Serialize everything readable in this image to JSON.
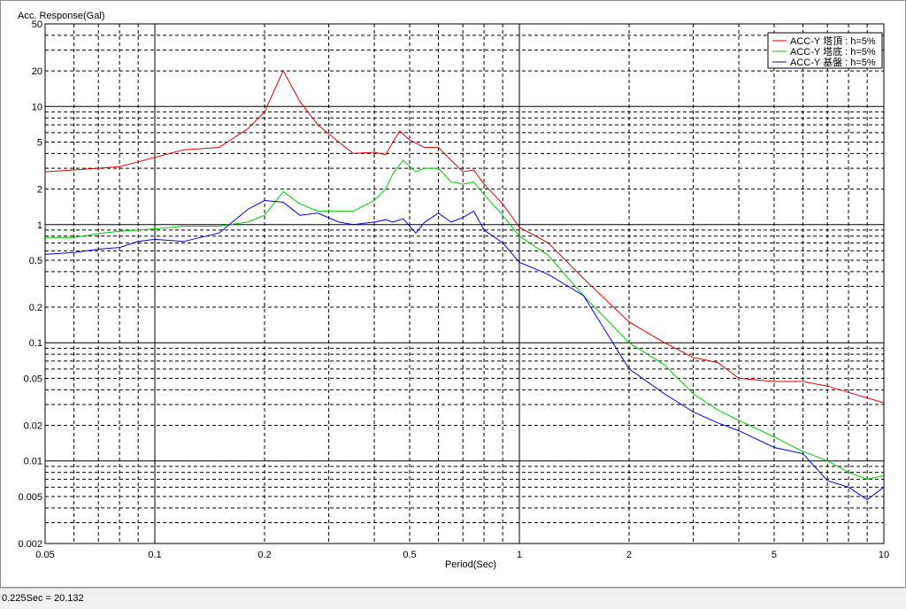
{
  "status": {
    "readout": "0.225Sec = 20.132"
  },
  "chart_data": {
    "type": "line",
    "title": "",
    "ylabel": "Acc. Response(Gal)",
    "xlabel": "Period(Sec)",
    "xscale": "log",
    "yscale": "log",
    "xlim": [
      0.05,
      10
    ],
    "ylim": [
      0.002,
      50
    ],
    "grid": true,
    "legend_position": "top-right",
    "x_ticks": [
      0.05,
      0.1,
      0.2,
      0.5,
      1,
      2,
      5,
      10
    ],
    "x_tick_labels": [
      "0.05",
      "0.1",
      "0.2",
      "0.5",
      "1",
      "2",
      "5",
      "10"
    ],
    "y_ticks": [
      0.002,
      0.005,
      0.01,
      0.02,
      0.05,
      0.1,
      0.2,
      0.5,
      1,
      2,
      5,
      10,
      20,
      50
    ],
    "y_tick_labels": [
      "0.002",
      "0.005",
      "0.01",
      "0.02",
      "0.05",
      "0.1",
      "0.2",
      "0.5",
      "1",
      "2",
      "5",
      "10",
      "20",
      "50"
    ],
    "series": [
      {
        "name": "ACC-Y 塔頂 : h=5%",
        "color": "#e00000",
        "points": [
          [
            0.05,
            2.8
          ],
          [
            0.06,
            2.9
          ],
          [
            0.07,
            3.0
          ],
          [
            0.08,
            3.1
          ],
          [
            0.09,
            3.4
          ],
          [
            0.1,
            3.7
          ],
          [
            0.12,
            4.3
          ],
          [
            0.15,
            4.5
          ],
          [
            0.18,
            6.5
          ],
          [
            0.2,
            9
          ],
          [
            0.225,
            20.1
          ],
          [
            0.25,
            11
          ],
          [
            0.28,
            7
          ],
          [
            0.32,
            5
          ],
          [
            0.35,
            4
          ],
          [
            0.4,
            4.1
          ],
          [
            0.43,
            3.9
          ],
          [
            0.45,
            5
          ],
          [
            0.47,
            6.2
          ],
          [
            0.5,
            5.2
          ],
          [
            0.55,
            4.5
          ],
          [
            0.6,
            4.5
          ],
          [
            0.65,
            3.5
          ],
          [
            0.7,
            2.8
          ],
          [
            0.75,
            2.9
          ],
          [
            0.8,
            2.2
          ],
          [
            0.9,
            1.5
          ],
          [
            1.0,
            0.95
          ],
          [
            1.2,
            0.7
          ],
          [
            1.5,
            0.35
          ],
          [
            2.0,
            0.15
          ],
          [
            2.5,
            0.1
          ],
          [
            3.0,
            0.075
          ],
          [
            3.5,
            0.068
          ],
          [
            4.0,
            0.05
          ],
          [
            5.0,
            0.047
          ],
          [
            6.0,
            0.047
          ],
          [
            7.0,
            0.043
          ],
          [
            8.0,
            0.038
          ],
          [
            10.0,
            0.031
          ]
        ]
      },
      {
        "name": "ACC-Y 塔底 : h=5%",
        "color": "#00c800",
        "points": [
          [
            0.05,
            0.78
          ],
          [
            0.06,
            0.78
          ],
          [
            0.07,
            0.84
          ],
          [
            0.08,
            0.88
          ],
          [
            0.09,
            0.9
          ],
          [
            0.1,
            0.92
          ],
          [
            0.12,
            0.97
          ],
          [
            0.15,
            0.97
          ],
          [
            0.18,
            1.05
          ],
          [
            0.2,
            1.2
          ],
          [
            0.225,
            1.9
          ],
          [
            0.25,
            1.5
          ],
          [
            0.28,
            1.3
          ],
          [
            0.32,
            1.3
          ],
          [
            0.35,
            1.3
          ],
          [
            0.4,
            1.6
          ],
          [
            0.43,
            2.0
          ],
          [
            0.45,
            2.7
          ],
          [
            0.48,
            3.5
          ],
          [
            0.52,
            2.8
          ],
          [
            0.55,
            3.0
          ],
          [
            0.6,
            3.0
          ],
          [
            0.65,
            2.3
          ],
          [
            0.7,
            2.2
          ],
          [
            0.75,
            2.3
          ],
          [
            0.8,
            1.8
          ],
          [
            0.9,
            1.2
          ],
          [
            1.0,
            0.8
          ],
          [
            1.2,
            0.55
          ],
          [
            1.5,
            0.25
          ],
          [
            2.0,
            0.1
          ],
          [
            2.5,
            0.065
          ],
          [
            3.0,
            0.037
          ],
          [
            3.5,
            0.027
          ],
          [
            4.0,
            0.022
          ],
          [
            5.0,
            0.016
          ],
          [
            6.0,
            0.012
          ],
          [
            7.0,
            0.01
          ],
          [
            8.0,
            0.008
          ],
          [
            9.0,
            0.007
          ],
          [
            10.0,
            0.0075
          ]
        ]
      },
      {
        "name": "ACC-Y 基盤 : h=5%",
        "color": "#0000e0",
        "points": [
          [
            0.05,
            0.56
          ],
          [
            0.06,
            0.58
          ],
          [
            0.07,
            0.62
          ],
          [
            0.08,
            0.64
          ],
          [
            0.09,
            0.72
          ],
          [
            0.1,
            0.75
          ],
          [
            0.12,
            0.72
          ],
          [
            0.15,
            0.85
          ],
          [
            0.18,
            1.35
          ],
          [
            0.2,
            1.6
          ],
          [
            0.225,
            1.55
          ],
          [
            0.25,
            1.2
          ],
          [
            0.28,
            1.25
          ],
          [
            0.32,
            1.05
          ],
          [
            0.35,
            1.0
          ],
          [
            0.4,
            1.05
          ],
          [
            0.43,
            1.1
          ],
          [
            0.45,
            1.05
          ],
          [
            0.48,
            1.12
          ],
          [
            0.52,
            0.85
          ],
          [
            0.55,
            1.05
          ],
          [
            0.6,
            1.25
          ],
          [
            0.65,
            1.05
          ],
          [
            0.7,
            1.15
          ],
          [
            0.75,
            1.3
          ],
          [
            0.8,
            0.9
          ],
          [
            0.9,
            0.7
          ],
          [
            1.0,
            0.48
          ],
          [
            1.2,
            0.38
          ],
          [
            1.5,
            0.25
          ],
          [
            2.0,
            0.06
          ],
          [
            2.5,
            0.037
          ],
          [
            3.0,
            0.026
          ],
          [
            3.5,
            0.021
          ],
          [
            4.0,
            0.018
          ],
          [
            5.0,
            0.013
          ],
          [
            6.0,
            0.0115
          ],
          [
            7.0,
            0.0068
          ],
          [
            8.0,
            0.006
          ],
          [
            9.0,
            0.0047
          ],
          [
            10.0,
            0.006
          ]
        ]
      }
    ]
  }
}
